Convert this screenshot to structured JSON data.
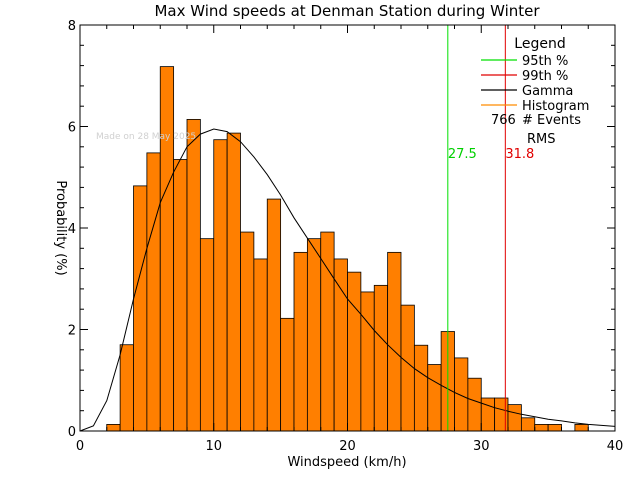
{
  "chart_data": {
    "type": "bar",
    "title": "Max Wind speeds at Denman Station during Winter",
    "xlabel": "Windspeed (km/h)",
    "ylabel": "Probability (%)",
    "xlim": [
      0,
      40
    ],
    "ylim": [
      0,
      8
    ],
    "xticks": [
      "0",
      "10",
      "20",
      "30",
      "40"
    ],
    "yticks": [
      "0",
      "2",
      "4",
      "6",
      "8"
    ],
    "watermark": "Made on 28 May 2025",
    "bin_width": 1,
    "bin_starts": [
      2,
      3,
      4,
      5,
      6,
      7,
      8,
      9,
      10,
      11,
      12,
      13,
      14,
      15,
      16,
      17,
      18,
      19,
      20,
      21,
      22,
      23,
      24,
      25,
      26,
      27,
      28,
      29,
      30,
      31,
      32,
      33,
      34,
      35,
      36,
      37,
      38,
      39
    ],
    "histogram": [
      0.13,
      1.7,
      4.83,
      5.48,
      7.18,
      5.35,
      6.14,
      3.79,
      5.74,
      5.87,
      3.92,
      3.39,
      4.57,
      2.22,
      3.52,
      3.79,
      3.92,
      3.39,
      3.13,
      2.74,
      2.87,
      3.52,
      2.48,
      1.69,
      1.31,
      1.96,
      1.44,
      1.04,
      0.65,
      0.65,
      0.52,
      0.26,
      0.13,
      0.13,
      0,
      0.13,
      0,
      0
    ],
    "gamma": {
      "x": [
        0,
        1,
        2,
        3,
        4,
        5,
        6,
        7,
        8,
        9,
        10,
        11,
        12,
        13,
        14,
        15,
        16,
        17,
        18,
        19,
        20,
        21,
        22,
        23,
        24,
        25,
        26,
        27,
        28,
        29,
        30,
        31,
        32,
        33,
        34,
        35,
        36,
        37,
        38,
        39,
        40
      ],
      "y": [
        0,
        0.1,
        0.6,
        1.5,
        2.6,
        3.6,
        4.5,
        5.1,
        5.6,
        5.85,
        5.95,
        5.9,
        5.7,
        5.4,
        5.05,
        4.65,
        4.2,
        3.8,
        3.4,
        3.0,
        2.6,
        2.3,
        1.98,
        1.7,
        1.45,
        1.23,
        1.05,
        0.9,
        0.76,
        0.64,
        0.55,
        0.46,
        0.39,
        0.33,
        0.28,
        0.23,
        0.2,
        0.16,
        0.13,
        0.11,
        0.09
      ]
    },
    "percentile_95": 27.5,
    "percentile_99": 31.8,
    "percentile_95_label": "27.5",
    "percentile_99_label": "31.8",
    "legend": {
      "title": "Legend",
      "placement": "top-right",
      "items": [
        {
          "label": "95th %",
          "color": "#00e000"
        },
        {
          "label": "99th %",
          "color": "#e00000"
        },
        {
          "label": "Gamma",
          "color": "#000000"
        },
        {
          "label": "Histogram",
          "color": "#ff8c00"
        }
      ],
      "events_count": "766",
      "events_label": "# Events",
      "rms_label": "RMS"
    },
    "colors": {
      "bar_fill": "#ff7f00",
      "bar_edge": "#000000",
      "p95": "#00e000",
      "p99": "#e00000",
      "gamma": "#000000"
    }
  }
}
